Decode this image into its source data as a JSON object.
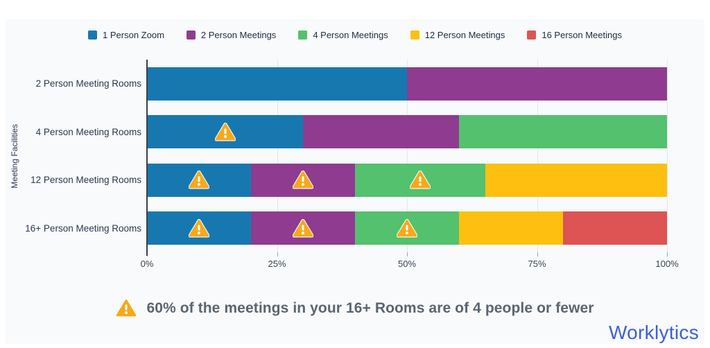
{
  "chart_data": {
    "type": "bar",
    "orientation": "horizontal",
    "stacked": true,
    "categories": [
      "2 Person Meeting Rooms",
      "4 Person Meeting Rooms",
      "12 Person Meeting Rooms",
      "16+ Person Meeting Rooms"
    ],
    "series": [
      {
        "name": "1 Person Zoom",
        "color": "#1778B0",
        "values": [
          50,
          30,
          20,
          20
        ]
      },
      {
        "name": "2 Person Meetings",
        "color": "#8F3B8F",
        "values": [
          50,
          30,
          20,
          20
        ]
      },
      {
        "name": "4 Person Meetings",
        "color": "#53C16E",
        "values": [
          0,
          40,
          25,
          20
        ]
      },
      {
        "name": "12 Person Meetings",
        "color": "#FDC011",
        "values": [
          0,
          0,
          35,
          20
        ]
      },
      {
        "name": "16 Person Meetings",
        "color": "#DE5353",
        "values": [
          0,
          0,
          0,
          20
        ]
      }
    ],
    "warning_markers": [
      [],
      [
        0
      ],
      [
        0,
        1,
        2
      ],
      [
        0,
        1,
        2
      ]
    ],
    "ylabel": "Meeting Facilities",
    "x_ticks": [
      "0%",
      "25%",
      "50%",
      "75%",
      "100%"
    ],
    "xlim": [
      0,
      100
    ],
    "grid": true,
    "legend_position": "top"
  },
  "annotation": {
    "icon": "warning-triangle-icon",
    "text": "60% of the meetings in your 16+ Rooms are of 4 people or fewer"
  },
  "logo": {
    "text": "Worklytics",
    "color": "#3E5ED8"
  },
  "colors": {
    "warning_orange": "#F7A81B",
    "axis": "#3A4046",
    "grid": "#E3E6EA",
    "label_text": "#2A3950"
  }
}
